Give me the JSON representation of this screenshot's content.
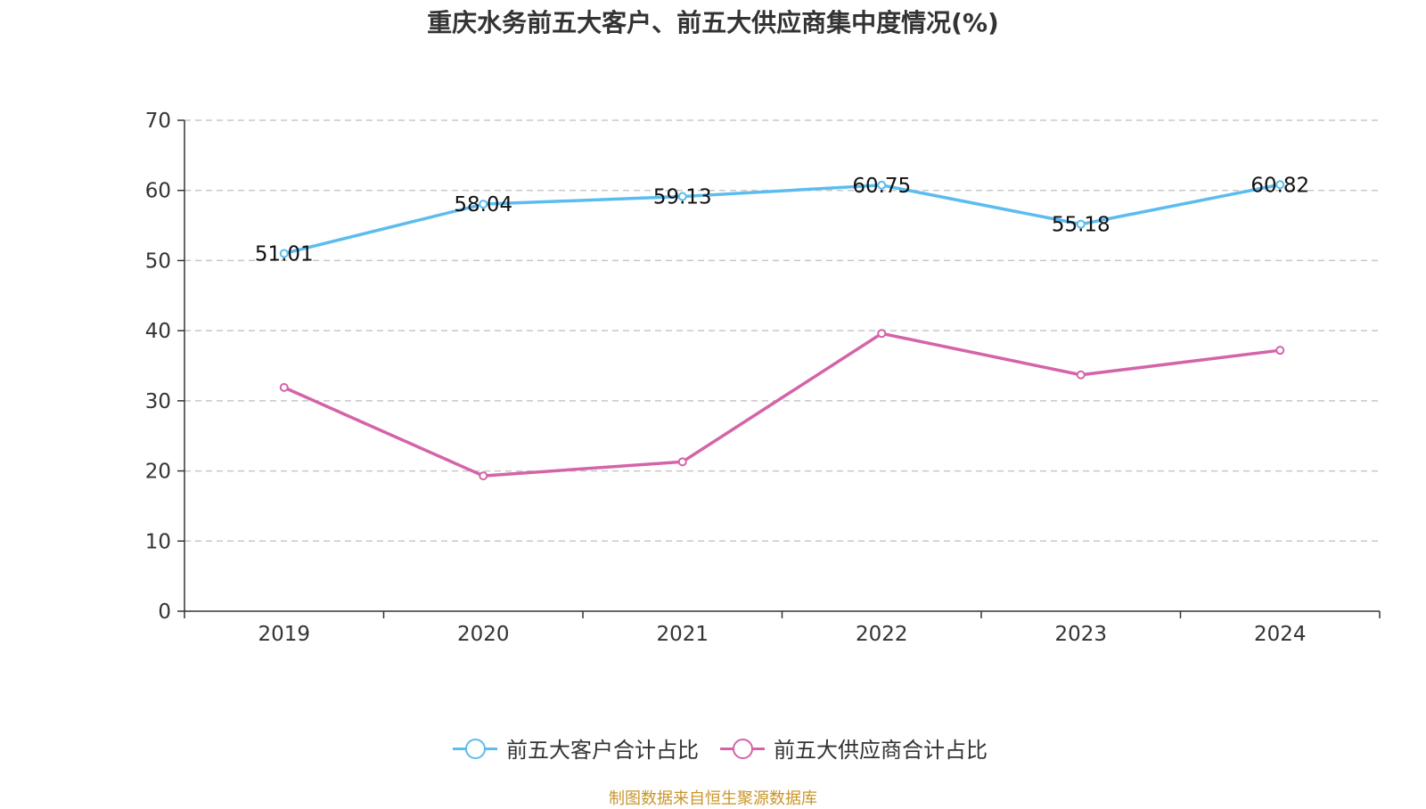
{
  "chart_data": {
    "type": "line",
    "title": "重庆水务前五大客户、前五大供应商集中度情况(%)",
    "categories": [
      "2019",
      "2020",
      "2021",
      "2022",
      "2023",
      "2024"
    ],
    "series": [
      {
        "name": "前五大客户合计占比",
        "color": "#5bbcef",
        "values": [
          51.01,
          58.04,
          59.13,
          60.75,
          55.18,
          60.82
        ],
        "labels": [
          "51.01",
          "58.04",
          "59.13",
          "60.75",
          "55.18",
          "60.82"
        ],
        "show_labels": true
      },
      {
        "name": "前五大供应商合计占比",
        "color": "#d464a8",
        "values": [
          31.9,
          19.3,
          21.3,
          39.6,
          33.7,
          37.2
        ],
        "show_labels": false
      }
    ],
    "ylim": [
      0,
      70
    ],
    "yticks": [
      0,
      10,
      20,
      30,
      40,
      50,
      60,
      70
    ],
    "ytick_labels": [
      "0",
      "10",
      "20",
      "30",
      "40",
      "50",
      "60",
      "70"
    ],
    "xlabel": "",
    "ylabel": "",
    "grid": "horizontal-dashed",
    "legend": "bottom-center"
  },
  "source_note": "制图数据来自恒生聚源数据库"
}
